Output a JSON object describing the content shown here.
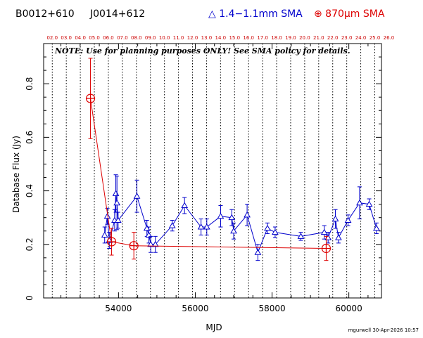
{
  "header": {
    "source_1": "B0012+610",
    "source_2": "J0014+612",
    "legend_blue": "△ 1.4−1.1mm SMA",
    "legend_red": "⊕ 870μm SMA"
  },
  "note": "NOTE: Use for planning purposes ONLY! See SMA policy for details.",
  "footer": "mgurwell 30-Apr-2026 10:57",
  "colors": {
    "blue": "#0000cc",
    "red": "#dd0000",
    "grid": "#000000"
  },
  "chart_data": {
    "type": "scatter",
    "xlabel": "MJD",
    "ylabel": "Database Flux (Jy)",
    "xlim": [
      52050,
      60850
    ],
    "ylim": [
      0,
      0.95
    ],
    "x_ticks": [
      54000,
      56000,
      58000,
      60000
    ],
    "y_ticks": [
      0,
      0.2,
      0.4,
      0.6,
      0.8
    ],
    "top_axis_year_labels": [
      "02.0",
      "03.0",
      "04.0",
      "05.0",
      "06.0",
      "07.0",
      "08.0",
      "09.0",
      "10.0",
      "11.0",
      "12.0",
      "13.0",
      "14.0",
      "15.0",
      "16.0",
      "17.0",
      "18.0",
      "19.0",
      "20.0",
      "21.0",
      "22.0",
      "23.0",
      "24.0",
      "25.0",
      "26.0"
    ],
    "top_axis_mjd_start": 52275,
    "top_axis_days_per_year": 365.25,
    "series": [
      {
        "name": "1.4−1.1mm SMA",
        "color": "#0000cc",
        "marker": "triangle",
        "x": [
          53640,
          53710,
          53760,
          53900,
          53930,
          53960,
          53990,
          54480,
          54740,
          54790,
          54840,
          54960,
          55400,
          55720,
          56150,
          56300,
          56660,
          56950,
          57000,
          57350,
          57630,
          57880,
          58080,
          58750,
          59360,
          59460,
          59650,
          59730,
          59980,
          60280,
          60530,
          60720
        ],
        "y": [
          0.235,
          0.305,
          0.215,
          0.29,
          0.39,
          0.355,
          0.29,
          0.38,
          0.26,
          0.235,
          0.2,
          0.2,
          0.27,
          0.345,
          0.265,
          0.265,
          0.305,
          0.3,
          0.25,
          0.31,
          0.17,
          0.26,
          0.245,
          0.23,
          0.245,
          0.225,
          0.295,
          0.225,
          0.29,
          0.355,
          0.35,
          0.26
        ],
        "yerr": [
          0.03,
          0.03,
          0.03,
          0.04,
          0.07,
          0.1,
          0.03,
          0.06,
          0.03,
          0.03,
          0.03,
          0.03,
          0.02,
          0.03,
          0.03,
          0.03,
          0.04,
          0.03,
          0.03,
          0.04,
          0.03,
          0.02,
          0.02,
          0.015,
          0.025,
          0.02,
          0.035,
          0.02,
          0.02,
          0.06,
          0.02,
          0.02
        ]
      },
      {
        "name": "870μm SMA",
        "color": "#dd0000",
        "marker": "circle-plus",
        "x": [
          53270,
          53820,
          54400,
          59410
        ],
        "y": [
          0.745,
          0.21,
          0.195,
          0.185
        ],
        "yerr": [
          0.15,
          0.05,
          0.05,
          0.045
        ]
      }
    ]
  }
}
